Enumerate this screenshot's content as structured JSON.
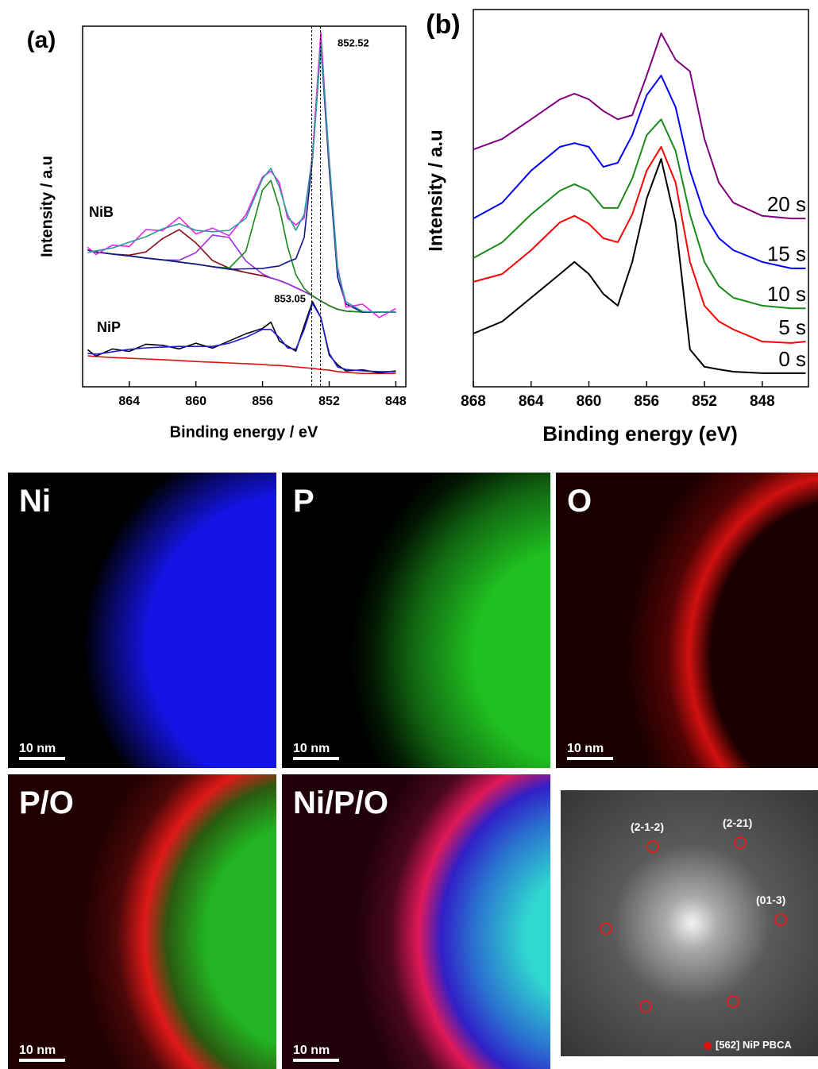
{
  "chart_data": [
    {
      "type": "line",
      "title": "(a)",
      "xlabel": "Binding energy / eV",
      "ylabel": "Intensity / a.u",
      "xlim": [
        866.8,
        847.4
      ],
      "xticks": [
        864,
        860,
        856,
        852,
        848
      ],
      "ylim": [
        0,
        100
      ],
      "x": [
        866.5,
        866,
        865,
        864,
        863,
        862,
        861,
        860,
        859,
        858,
        857,
        856,
        855.5,
        855,
        854.5,
        854,
        853.5,
        853,
        852.5,
        852,
        851.5,
        851,
        850,
        849,
        848
      ],
      "series": [
        {
          "color": "#7a7a7a",
          "values": [
            37.9,
            37.4,
            36.8,
            36.3,
            35.7,
            35.2,
            34.6,
            34.0,
            33.3,
            32.6,
            31.7,
            30.8,
            30.2,
            29.5,
            28.6,
            27.5,
            26.4,
            25.2,
            23.8,
            22.5,
            21.5,
            21.0,
            20.7,
            20.7,
            20.7
          ]
        },
        {
          "color": "#8b0a1a",
          "values": [
            37.9,
            37.4,
            36.8,
            36.5,
            37.4,
            41.1,
            43.6,
            39.9,
            35.0,
            32.9,
            31.7,
            30.8,
            30.2,
            29.5,
            28.6,
            27.5,
            26.4,
            25.2,
            23.8,
            22.5,
            21.5,
            21.0,
            20.7,
            20.7,
            20.7
          ]
        },
        {
          "color": "#9b30e0",
          "values": [
            37.9,
            37.4,
            36.8,
            36.3,
            35.7,
            35.2,
            35.1,
            37.2,
            42.1,
            41.4,
            34.9,
            31.3,
            30.2,
            29.5,
            28.6,
            27.5,
            26.4,
            25.2,
            23.8,
            22.5,
            21.5,
            21.0,
            20.7,
            20.7,
            20.7
          ]
        },
        {
          "color": "#1a8a1a",
          "values": [
            37.9,
            37.4,
            36.8,
            36.3,
            35.7,
            35.2,
            34.6,
            34.0,
            33.3,
            32.9,
            37.6,
            54.6,
            57.2,
            49.8,
            39.0,
            31.1,
            27.3,
            25.2,
            23.8,
            22.5,
            21.5,
            21.0,
            20.7,
            20.7,
            20.7
          ]
        },
        {
          "color": "#14148a",
          "values": [
            37.9,
            37.4,
            36.8,
            36.3,
            35.7,
            35.2,
            34.6,
            34.0,
            33.3,
            32.6,
            32.7,
            32.8,
            33.2,
            33.5,
            34.6,
            35.5,
            41.4,
            63.2,
            94.8,
            60.5,
            30.5,
            23.0,
            20.7,
            20.7,
            20.7
          ]
        },
        {
          "color": "#f020f0",
          "values": [
            38.7,
            36.7,
            39.3,
            38.9,
            43.6,
            43.3,
            47.0,
            42.4,
            44.0,
            41.9,
            47.7,
            58.2,
            59.8,
            56.7,
            46.8,
            44.9,
            46.8,
            64.4,
            98.2,
            62.4,
            33.4,
            22.1,
            22.9,
            19.2,
            21.7
          ]
        },
        {
          "color": "#2a9a9a",
          "values": [
            37.2,
            37.7,
            38.5,
            40.1,
            41.6,
            43.8,
            45.2,
            43.4,
            43.0,
            43.4,
            46.7,
            57.7,
            60.6,
            55.5,
            47.8,
            43.4,
            47.8,
            63.4,
            95.2,
            63.4,
            32.4,
            23.6,
            20.9,
            20.7,
            20.7
          ]
        },
        {
          "color": "#e01010",
          "values": [
            8.6,
            8.4,
            8.1,
            7.9,
            7.7,
            7.5,
            7.3,
            7.0,
            6.8,
            6.6,
            6.4,
            6.2,
            6.0,
            5.9,
            5.7,
            5.5,
            5.3,
            5.1,
            4.8,
            4.6,
            4.2,
            4.0,
            3.7,
            3.7,
            3.7
          ]
        },
        {
          "color": "#000000",
          "values": [
            10.3,
            8.5,
            10.5,
            9.8,
            11.8,
            11.5,
            10.5,
            12.1,
            10.7,
            12.7,
            14.7,
            16.2,
            17.9,
            12.7,
            11.3,
            9.9,
            16.9,
            23.6,
            19.2,
            8.8,
            6.1,
            4.4,
            4.7,
            3.9,
            4.4
          ]
        },
        {
          "color": "#1a1ae0",
          "values": [
            9.3,
            9.0,
            9.7,
            10.4,
            10.8,
            11.0,
            11.2,
            11.2,
            11.2,
            12.1,
            13.7,
            15.9,
            15.9,
            13.7,
            10.8,
            10.4,
            15.9,
            23.1,
            19.2,
            9.3,
            5.5,
            4.8,
            4.4,
            4.2,
            4.2
          ]
        }
      ],
      "annotations": [
        {
          "text": "852.52",
          "x": 852.52
        },
        {
          "text": "853.05",
          "x": 853.05
        },
        {
          "text": "NiB"
        },
        {
          "text": "NiP"
        }
      ]
    },
    {
      "type": "line",
      "title": "(b)",
      "xlabel": "Binding energy (eV)",
      "ylabel": "Intensity / a.u",
      "xlim": [
        868,
        844.8
      ],
      "xticks": [
        868,
        864,
        860,
        856,
        852,
        848
      ],
      "ylim": [
        0,
        100
      ],
      "x": [
        868,
        866,
        864,
        862,
        861,
        860,
        859,
        858,
        857,
        856,
        855,
        854,
        853,
        852,
        851,
        850,
        848,
        846,
        845
      ],
      "series": [
        {
          "name": "0 s",
          "color": "#000000",
          "values": [
            14.1,
            17.3,
            23.6,
            29.9,
            33.1,
            29.9,
            24.6,
            21.5,
            33.1,
            49.9,
            60.4,
            43.6,
            9.9,
            5.3,
            4.6,
            4.0,
            3.6,
            3.6,
            3.6
          ]
        },
        {
          "name": "5 s",
          "color": "#ff0000",
          "values": [
            27.8,
            29.9,
            36.2,
            43.6,
            45.3,
            43.2,
            39.4,
            38.3,
            45.7,
            57.3,
            63.6,
            54.1,
            33.1,
            21.5,
            17.3,
            15.2,
            12.0,
            11.6,
            12.0
          ]
        },
        {
          "name": "10 s",
          "color": "#1a8a1a",
          "values": [
            34.1,
            38.3,
            45.7,
            52.0,
            53.7,
            52.0,
            47.4,
            47.4,
            55.2,
            66.7,
            70.9,
            62.5,
            45.7,
            33.1,
            26.7,
            23.6,
            21.5,
            20.8,
            20.8
          ]
        },
        {
          "name": "15 s",
          "color": "#0000ff",
          "values": [
            44.6,
            48.8,
            57.3,
            63.6,
            64.6,
            63.6,
            58.3,
            59.4,
            66.7,
            77.3,
            82.5,
            74.1,
            57.3,
            45.7,
            39.4,
            36.2,
            33.1,
            31.4,
            31.4
          ]
        },
        {
          "name": "20 s",
          "color": "#800080",
          "values": [
            62.9,
            65.7,
            70.9,
            76.2,
            77.7,
            76.2,
            73.1,
            70.9,
            72.0,
            82.5,
            93.7,
            86.7,
            83.6,
            65.7,
            54.1,
            48.8,
            45.3,
            44.6,
            44.6
          ]
        }
      ]
    }
  ],
  "maps": [
    {
      "label": "Ni",
      "scale_bar": "10 nm"
    },
    {
      "label": "P",
      "scale_bar": "10 nm"
    },
    {
      "label": "O",
      "scale_bar": "10 nm"
    },
    {
      "label": "P/O",
      "scale_bar": "10 nm"
    },
    {
      "label": "Ni/P/O",
      "scale_bar": "10 nm"
    }
  ],
  "fft": {
    "spots": [
      "(2-1-2)",
      "(2-21)",
      "(01-3)"
    ],
    "caption": "[562] NiP PBCA"
  }
}
